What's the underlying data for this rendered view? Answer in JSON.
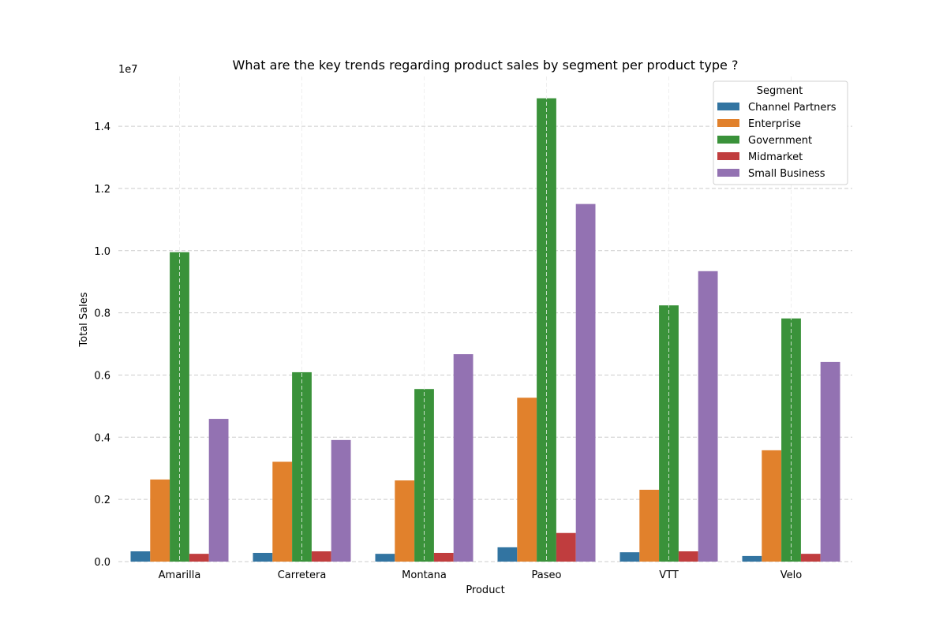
{
  "chart_data": {
    "type": "bar",
    "title": "What are the key trends regarding product sales by segment per product type ?",
    "xlabel": "Product",
    "ylabel": "Total Sales",
    "y_offset_label": "1e7",
    "y_scale_factor": 10000000,
    "ylim": [
      0,
      15600000
    ],
    "yticks": [
      0,
      2000000,
      4000000,
      6000000,
      8000000,
      10000000,
      12000000,
      14000000
    ],
    "ytick_labels": [
      "0.0",
      "0.2",
      "0.4",
      "0.6",
      "0.8",
      "1.0",
      "1.2",
      "1.4"
    ],
    "categories": [
      "Amarilla",
      "Carretera",
      "Montana",
      "Paseo",
      "VTT",
      "Velo"
    ],
    "grid": true,
    "legend_title": "Segment",
    "legend_position": "top-right",
    "series": [
      {
        "name": "Channel Partners",
        "color": "#3274a1",
        "values": [
          330000,
          280000,
          250000,
          460000,
          300000,
          180000
        ]
      },
      {
        "name": "Enterprise",
        "color": "#e1812c",
        "values": [
          2640000,
          3210000,
          2610000,
          5270000,
          2310000,
          3580000
        ]
      },
      {
        "name": "Government",
        "color": "#3a923a",
        "values": [
          9950000,
          6090000,
          5550000,
          14900000,
          8240000,
          7820000
        ]
      },
      {
        "name": "Midmarket",
        "color": "#c03d3e",
        "values": [
          250000,
          330000,
          280000,
          920000,
          330000,
          250000
        ]
      },
      {
        "name": "Small Business",
        "color": "#9372b2",
        "values": [
          4590000,
          3910000,
          6670000,
          11500000,
          9340000,
          6420000
        ]
      }
    ]
  }
}
